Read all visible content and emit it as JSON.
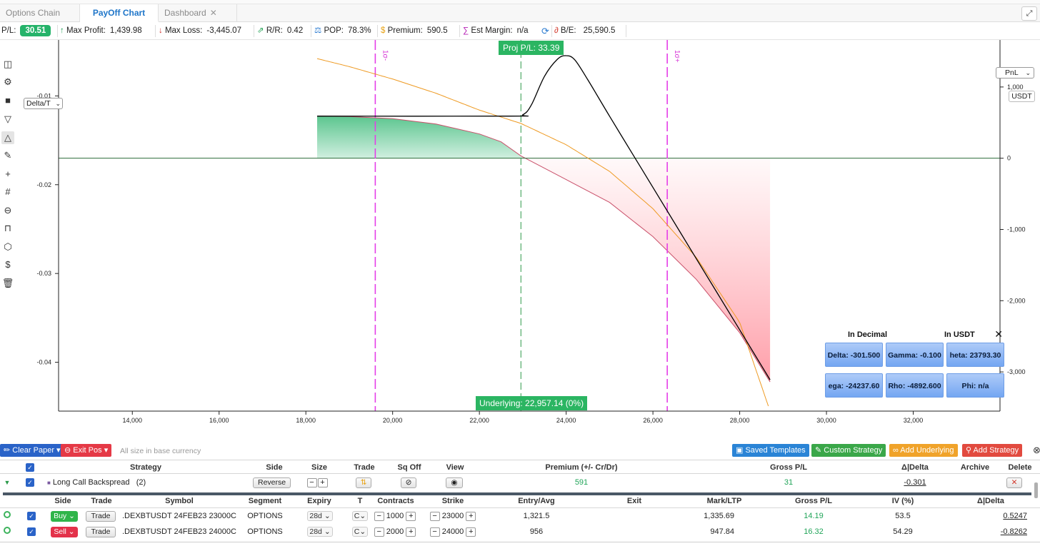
{
  "tabs": [
    {
      "label": "Options Chain",
      "active": false
    },
    {
      "label": "PayOff Chart",
      "active": true
    },
    {
      "label": "Dashboard",
      "active": false,
      "closable": true
    }
  ],
  "stats": {
    "pl_label": "P/L:",
    "pl_value": "30.51",
    "max_profit_label": "Max Profit:",
    "max_profit_value": "1,439.98",
    "max_loss_label": "Max Loss:",
    "max_loss_value": "-3,445.07",
    "rr_label": "R/R:",
    "rr_value": "0.42",
    "pop_label": "POP:",
    "pop_value": "78.3%",
    "premium_label": "Premium:",
    "premium_value": "590.5",
    "margin_label": "Est Margin:",
    "margin_value": "n/a",
    "be_label": "B/E:",
    "be_value": "25,590.5"
  },
  "toolbar_icons": [
    "sidebar-toggle-icon",
    "gear-icon",
    "square-icon",
    "filter-icon",
    "triangle-icon",
    "pencil-icon",
    "plus-icon",
    "grid-icon",
    "zoom-out-icon",
    "lock-icon",
    "cube-icon",
    "dollar-icon",
    "trash-icon"
  ],
  "chart": {
    "left_select": "Delta/T",
    "right_select": "PnL",
    "right_unit": "USDT",
    "proj_label": "Proj P/L: 33.39",
    "underlying_label": "Underlying: 22,957.14 (0%)",
    "sigma_minus": "1σ-",
    "sigma_plus": "1σ+"
  },
  "chart_data": {
    "type": "line",
    "x_ticks": [
      "14,000",
      "16,000",
      "18,000",
      "20,000",
      "22,000",
      "24,000",
      "26,000",
      "28,000",
      "30,000",
      "32,000"
    ],
    "xlim": [
      12300,
      34000
    ],
    "left_ticks": [
      "-0.01",
      "-0.02",
      "-0.03",
      "-0.04"
    ],
    "left_ylim": [
      -0.0455,
      -0.0037
    ],
    "right_ticks": [
      "1,000",
      "0",
      "-1,000",
      "-2,000",
      "-3,000"
    ],
    "right_ylim": [
      -3550,
      1660
    ],
    "vertical_lines": [
      {
        "x": 19600,
        "style": "magenta-dashed",
        "label": "1σ-"
      },
      {
        "x": 22957,
        "style": "green-dashed"
      },
      {
        "x": 26330,
        "style": "magenta-dashed",
        "label": "1σ+"
      }
    ],
    "series": [
      {
        "kind": "expiry-payoff",
        "color": "#000000",
        "points": [
          [
            18260,
            591
          ],
          [
            22700,
            591
          ],
          [
            23000,
            610
          ],
          [
            23200,
            750
          ],
          [
            23500,
            1150
          ],
          [
            23800,
            1390
          ],
          [
            24000,
            1439.98
          ],
          [
            24200,
            1380
          ],
          [
            24500,
            1100
          ],
          [
            25000,
            590
          ],
          [
            25590.5,
            0
          ],
          [
            26000,
            -410
          ],
          [
            27000,
            -1410
          ],
          [
            28000,
            -2410
          ],
          [
            28700,
            -3110
          ]
        ]
      },
      {
        "kind": "projected-pnl",
        "colors": [
          "#2db56f",
          "#ff6f7f"
        ],
        "points": [
          [
            18260,
            591
          ],
          [
            19000,
            585
          ],
          [
            20000,
            555
          ],
          [
            21000,
            480
          ],
          [
            22000,
            340
          ],
          [
            22500,
            230
          ],
          [
            22957,
            33
          ],
          [
            23500,
            -140
          ],
          [
            24000,
            -300
          ],
          [
            25000,
            -620
          ],
          [
            26000,
            -1100
          ],
          [
            27000,
            -1700
          ],
          [
            28000,
            -2450
          ],
          [
            28700,
            -3140
          ]
        ]
      },
      {
        "kind": "delta",
        "axis": "left",
        "color": "#ee9a22",
        "points": [
          [
            18260,
            -0.0058
          ],
          [
            19000,
            -0.0067
          ],
          [
            20000,
            -0.0081
          ],
          [
            21000,
            -0.0097
          ],
          [
            22000,
            -0.0116
          ],
          [
            22957,
            -0.0131
          ],
          [
            24000,
            -0.0155
          ],
          [
            25000,
            -0.0185
          ],
          [
            26000,
            -0.0227
          ],
          [
            27000,
            -0.0282
          ],
          [
            28000,
            -0.0355
          ],
          [
            28700,
            -0.0455
          ]
        ]
      }
    ]
  },
  "greeks": {
    "head_left": "In Decimal",
    "head_right": "In USDT",
    "cells": [
      "Delta: -301.500",
      "Gamma: -0.100",
      "heta: 23793.30",
      "ega: -24237.60",
      "Rho: -4892.600",
      "Phi: n/a"
    ]
  },
  "actions": {
    "clear_paper": "Clear Paper",
    "exit_pos": "Exit Pos",
    "hint": "All size in base currency",
    "saved_templates": "Saved Templates",
    "custom_strategy": "Custom Strategy",
    "add_underlying": "Add Underlying",
    "add_strategy": "Add Strategy"
  },
  "strategy_table": {
    "headers": [
      "Strategy",
      "Side",
      "Size",
      "Trade",
      "Sq Off",
      "View",
      "Premium (+/- Cr/Dr)",
      "Gross P/L",
      "Δ|Delta",
      "Archive",
      "Delete"
    ],
    "row": {
      "name": "Long Call Backspread",
      "count": "(2)",
      "side_button": "Reverse",
      "premium": "591",
      "gross_pl": "31",
      "delta": "-0.301",
      "delete": "✕"
    }
  },
  "legs_table": {
    "headers": [
      "Side",
      "Trade",
      "Symbol",
      "Segment",
      "Expiry",
      "T",
      "Contracts",
      "Strike",
      "Entry/Avg",
      "Exit",
      "Mark/LTP",
      "Gross P/L",
      "IV (%)",
      "Δ|Delta"
    ],
    "rows": [
      {
        "side": "Buy",
        "trade": "Trade",
        "symbol": ".DEXBTUSDT 24FEB23 23000C",
        "segment": "OPTIONS",
        "expiry": "28d",
        "type": "C",
        "contracts": "1000",
        "strike": "23000",
        "entry": "1,321.5",
        "exit": "",
        "mark": "1,335.69",
        "gross_pl": "14.19",
        "iv": "53.5",
        "delta": "0.5247"
      },
      {
        "side": "Sell",
        "trade": "Trade",
        "symbol": ".DEXBTUSDT 24FEB23 24000C",
        "segment": "OPTIONS",
        "expiry": "28d",
        "type": "C",
        "contracts": "2000",
        "strike": "24000",
        "entry": "956",
        "exit": "",
        "mark": "947.84",
        "gross_pl": "16.32",
        "iv": "54.29",
        "delta": "-0.8262"
      }
    ]
  }
}
